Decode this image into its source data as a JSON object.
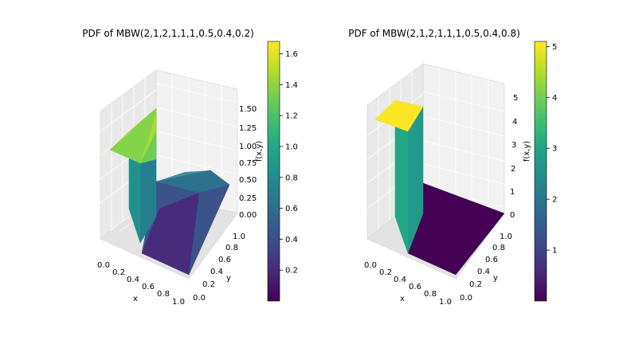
{
  "chart_data": [
    {
      "type": "surface3d",
      "title": "PDF of MBW(2,1,2,1,1,1,0.5,0.4,0.2)",
      "xlabel": "x",
      "ylabel": "y",
      "zlabel": "f(x,y)",
      "x_ticks": [
        "0.0",
        "0.2",
        "0.4",
        "0.6",
        "0.8",
        "1.0"
      ],
      "y_ticks": [
        "0.0",
        "0.2",
        "0.4",
        "0.6",
        "0.8",
        "1.0"
      ],
      "z_ticks": [
        "0.00",
        "0.25",
        "0.50",
        "0.75",
        "1.00",
        "1.25",
        "1.50"
      ],
      "colorbar_ticks": [
        "0.2",
        "0.4",
        "0.6",
        "0.8",
        "1.0",
        "1.2",
        "1.4",
        "1.6"
      ],
      "zlim": [
        0,
        1.6
      ],
      "colorbar_range": [
        0.0,
        1.68
      ],
      "colormap": "viridis",
      "surface": {
        "split_x": 0.4,
        "region_low": "f rises with y and peaks near y = 1; about 1.6 at x = 0, 1.1 at x = 0.4",
        "region_high": "f is a dome in x, about 0.9 at its peak and 0.0 at x = 1"
      }
    },
    {
      "type": "surface3d",
      "title": "PDF of MBW(2,1,2,1,1,1,0.5,0.4,0.8)",
      "xlabel": "x",
      "ylabel": "y",
      "zlabel": "f(x,y)",
      "x_ticks": [
        "0.0",
        "0.2",
        "0.4",
        "0.6",
        "0.8",
        "1.0"
      ],
      "y_ticks": [
        "0.0",
        "0.2",
        "0.4",
        "0.6",
        "0.8",
        "1.0"
      ],
      "z_ticks": [
        "0",
        "1",
        "2",
        "3",
        "4",
        "5"
      ],
      "colorbar_ticks": [
        "1",
        "2",
        "3",
        "4",
        "5"
      ],
      "zlim": [
        0,
        5.1
      ],
      "colorbar_range": [
        0.0,
        5.1
      ],
      "colormap": "viridis",
      "surface": {
        "split_x": 0.4,
        "region_low": "f is about 5.1 for x < 0.4",
        "region_high": "f is about 0.1 for x > 0.4"
      }
    }
  ]
}
